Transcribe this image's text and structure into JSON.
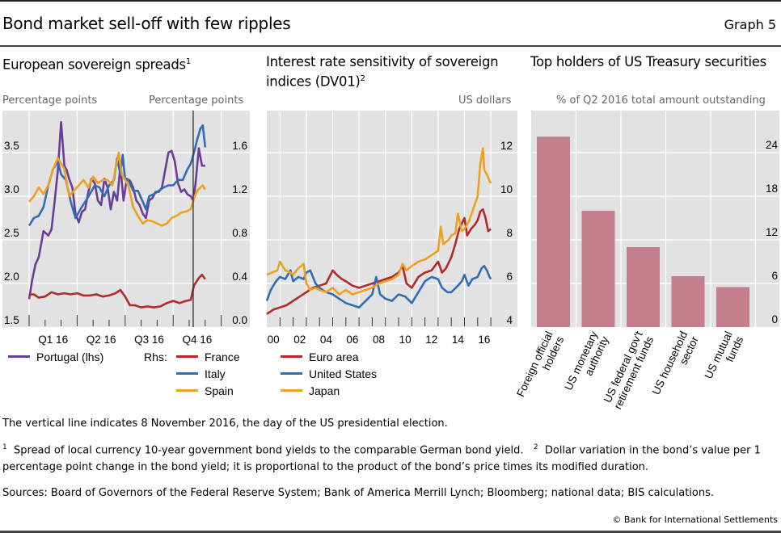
{
  "header": {
    "title": "Bond market sell-off with few ripples",
    "graph_number": "Graph 5"
  },
  "chart_data": [
    {
      "type": "line",
      "title": "European sovereign spreads",
      "title_footnote": "1",
      "left_unit": "Percentage points",
      "right_unit": "Percentage points",
      "x_tick_labels": [
        "Q1 16",
        "Q2 16",
        "Q3 16",
        "Q4 16"
      ],
      "x_range": [
        "2016-01-01",
        "2017-01-01"
      ],
      "ylim_left": [
        1.5,
        4.0
      ],
      "yticks_left": [
        "1.5",
        "2.0",
        "2.5",
        "3.0",
        "3.5"
      ],
      "ylim_right": [
        0.0,
        2.0
      ],
      "yticks_right": [
        "0.0",
        "0.4",
        "0.8",
        "1.2",
        "1.6"
      ],
      "grid": true,
      "annotation": {
        "type": "vertical-line",
        "date": "2016-11-08"
      },
      "legend": {
        "lhs": [
          {
            "name": "Portugal (lhs)",
            "color": "#6a3d9a"
          }
        ],
        "rhs_label": "Rhs:",
        "rhs": [
          {
            "name": "France",
            "color": "#b22a2a"
          },
          {
            "name": "Italy",
            "color": "#2f6db5"
          },
          {
            "name": "Spain",
            "color": "#f0a020"
          }
        ]
      },
      "series": [
        {
          "name": "Portugal",
          "axis": "left",
          "color": "#6a3d9a",
          "x_months": [
            0,
            0.2,
            0.4,
            0.6,
            0.9,
            1.2,
            1.4,
            1.6,
            1.8,
            2.0,
            2.2,
            2.35,
            2.5,
            2.7,
            2.9,
            3.1,
            3.3,
            3.5,
            3.7,
            3.9,
            4.1,
            4.3,
            4.5,
            4.7,
            4.9,
            5.1,
            5.3,
            5.5,
            5.7,
            5.8,
            5.9,
            6.1,
            6.3,
            6.5,
            6.7,
            6.9,
            7.1,
            7.3,
            7.5,
            7.7,
            7.9,
            8.1,
            8.3,
            8.5,
            8.7,
            8.9,
            9.1,
            9.3,
            9.5,
            9.7,
            9.9,
            10.1,
            10.25,
            10.4,
            10.6,
            10.8,
            11.0
          ],
          "values": [
            1.82,
            2.05,
            2.22,
            2.3,
            2.6,
            2.55,
            2.62,
            2.95,
            3.3,
            3.85,
            3.35,
            3.3,
            3.2,
            3.1,
            2.8,
            2.7,
            2.82,
            2.85,
            3.05,
            3.2,
            3.15,
            2.95,
            2.9,
            3.2,
            3.1,
            2.85,
            3.05,
            2.95,
            3.35,
            3.15,
            2.95,
            3.2,
            3.18,
            3.1,
            2.95,
            2.9,
            2.8,
            2.75,
            2.95,
            2.98,
            3.05,
            3.05,
            3.1,
            3.3,
            3.5,
            3.52,
            3.4,
            3.15,
            3.05,
            3.08,
            3.02,
            3.0,
            2.95,
            3.15,
            3.55,
            3.35,
            3.35
          ]
        },
        {
          "name": "France",
          "axis": "right",
          "color": "#b22a2a",
          "x_months": [
            0,
            0.3,
            0.6,
            1.0,
            1.4,
            1.8,
            2.2,
            2.6,
            3.0,
            3.4,
            3.8,
            4.2,
            4.6,
            5.0,
            5.4,
            5.7,
            5.9,
            6.0,
            6.3,
            6.6,
            7.0,
            7.4,
            7.8,
            8.2,
            8.6,
            9.0,
            9.4,
            9.8,
            10.1,
            10.3,
            10.6,
            10.8,
            11.0
          ],
          "values": [
            0.3,
            0.3,
            0.27,
            0.28,
            0.32,
            0.3,
            0.31,
            0.3,
            0.31,
            0.29,
            0.29,
            0.3,
            0.28,
            0.29,
            0.31,
            0.34,
            0.3,
            0.28,
            0.2,
            0.2,
            0.18,
            0.19,
            0.18,
            0.19,
            0.22,
            0.24,
            0.22,
            0.24,
            0.25,
            0.38,
            0.45,
            0.48,
            0.44
          ]
        },
        {
          "name": "Italy",
          "axis": "right",
          "color": "#2f6db5",
          "x_months": [
            0,
            0.3,
            0.6,
            0.9,
            1.2,
            1.5,
            1.8,
            2.0,
            2.3,
            2.6,
            2.9,
            3.2,
            3.5,
            3.8,
            4.1,
            4.4,
            4.7,
            5.0,
            5.3,
            5.5,
            5.7,
            5.85,
            6.0,
            6.2,
            6.5,
            6.8,
            7.1,
            7.3,
            7.5,
            7.8,
            8.1,
            8.4,
            8.7,
            9.0,
            9.3,
            9.6,
            9.9,
            10.1,
            10.3,
            10.5,
            10.7,
            10.85,
            11.0
          ],
          "values": [
            0.93,
            1.0,
            1.02,
            1.1,
            1.3,
            1.45,
            1.52,
            1.4,
            1.35,
            1.15,
            1.0,
            1.08,
            1.15,
            1.22,
            1.3,
            1.28,
            1.2,
            1.3,
            1.35,
            1.55,
            1.4,
            1.58,
            1.35,
            1.35,
            1.25,
            1.25,
            1.15,
            1.08,
            1.2,
            1.22,
            1.25,
            1.28,
            1.3,
            1.3,
            1.35,
            1.35,
            1.45,
            1.5,
            1.6,
            1.72,
            1.82,
            1.85,
            1.65
          ]
        },
        {
          "name": "Spain",
          "axis": "right",
          "color": "#f0a020",
          "x_months": [
            0,
            0.3,
            0.6,
            0.9,
            1.2,
            1.5,
            1.8,
            2.0,
            2.2,
            2.5,
            2.8,
            3.1,
            3.4,
            3.7,
            4.0,
            4.3,
            4.6,
            4.9,
            5.2,
            5.4,
            5.6,
            5.8,
            6.0,
            6.2,
            6.5,
            6.8,
            7.1,
            7.4,
            7.7,
            8.0,
            8.3,
            8.6,
            8.9,
            9.2,
            9.5,
            9.8,
            10.1,
            10.3,
            10.5,
            10.7,
            10.85,
            11.0
          ],
          "values": [
            1.15,
            1.2,
            1.28,
            1.22,
            1.3,
            1.45,
            1.55,
            1.5,
            1.45,
            1.2,
            1.25,
            1.3,
            1.35,
            1.28,
            1.38,
            1.32,
            1.35,
            1.35,
            1.3,
            1.45,
            1.6,
            1.4,
            1.35,
            1.3,
            1.1,
            1.02,
            0.95,
            0.98,
            0.97,
            0.95,
            0.93,
            0.95,
            1.0,
            1.02,
            1.05,
            1.06,
            1.08,
            1.18,
            1.25,
            1.28,
            1.3,
            1.26
          ]
        }
      ]
    },
    {
      "type": "line",
      "title": "Interest rate sensitivity of sovereign indices (DV01)",
      "title_footnote": "2",
      "right_unit": "US dollars",
      "x_tick_labels": [
        "00",
        "02",
        "04",
        "06",
        "08",
        "10",
        "12",
        "14",
        "16"
      ],
      "x_range": [
        2000,
        2017
      ],
      "ylim": [
        4,
        14
      ],
      "yticks": [
        "4",
        "6",
        "8",
        "10",
        "12"
      ],
      "grid": true,
      "legend": [
        {
          "name": "Euro area",
          "color": "#b22a2a"
        },
        {
          "name": "United States",
          "color": "#2f6db5"
        },
        {
          "name": "Japan",
          "color": "#f0a020"
        }
      ],
      "series": [
        {
          "name": "Euro area",
          "color": "#b22a2a",
          "x": [
            2000,
            2000.5,
            2001,
            2001.5,
            2002,
            2002.5,
            2003,
            2003.5,
            2004,
            2004.5,
            2005,
            2005.3,
            2005.7,
            2006,
            2006.5,
            2007,
            2007.5,
            2008,
            2008.5,
            2009,
            2009.5,
            2010,
            2010.3,
            2010.6,
            2011,
            2011.5,
            2012,
            2012.5,
            2013,
            2013.3,
            2013.6,
            2014,
            2014.3,
            2014.6,
            2015,
            2015.2,
            2015.5,
            2015.8,
            2016,
            2016.2,
            2016.4,
            2016.6,
            2016.8,
            2017
          ],
          "values": [
            4.6,
            4.8,
            4.9,
            5.0,
            5.2,
            5.4,
            5.6,
            5.8,
            5.9,
            6.0,
            6.6,
            6.4,
            6.2,
            6.1,
            5.9,
            5.8,
            5.9,
            6.0,
            6.1,
            6.2,
            6.3,
            6.5,
            6.8,
            6.0,
            5.8,
            6.3,
            6.5,
            6.6,
            7.0,
            6.5,
            6.7,
            7.2,
            7.8,
            8.5,
            9.0,
            8.2,
            8.5,
            8.7,
            8.9,
            9.3,
            9.4,
            9.0,
            8.4,
            8.5
          ]
        },
        {
          "name": "United States",
          "color": "#2f6db5",
          "x": [
            2000,
            2000.3,
            2000.7,
            2001,
            2001.4,
            2001.8,
            2002,
            2002.4,
            2002.8,
            2003,
            2003.3,
            2003.7,
            2004,
            2004.5,
            2005,
            2005.5,
            2006,
            2006.5,
            2007,
            2007.5,
            2008,
            2008.3,
            2008.6,
            2009,
            2009.5,
            2010,
            2010.5,
            2011,
            2011.5,
            2012,
            2012.5,
            2013,
            2013.3,
            2013.7,
            2014,
            2014.5,
            2014.8,
            2015,
            2015.3,
            2015.6,
            2016,
            2016.3,
            2016.5,
            2016.7,
            2016.9,
            2017
          ],
          "values": [
            5.2,
            5.7,
            6.1,
            6.3,
            6.2,
            6.6,
            6.1,
            6.3,
            6.2,
            6.5,
            6.6,
            6.0,
            5.8,
            5.6,
            5.5,
            5.3,
            5.1,
            5.0,
            4.9,
            5.2,
            5.5,
            6.3,
            5.5,
            5.3,
            5.2,
            5.5,
            5.4,
            5.1,
            5.6,
            6.1,
            6.3,
            6.2,
            5.8,
            5.6,
            5.6,
            5.9,
            6.1,
            6.4,
            5.9,
            6.2,
            6.3,
            6.7,
            6.8,
            6.6,
            6.3,
            6.2
          ]
        },
        {
          "name": "Japan",
          "color": "#f0a020",
          "x": [
            2000,
            2000.4,
            2000.8,
            2001,
            2001.4,
            2001.8,
            2002,
            2002.4,
            2002.8,
            2003,
            2003.3,
            2003.7,
            2004,
            2004.5,
            2005,
            2005.5,
            2006,
            2006.5,
            2007,
            2007.5,
            2008,
            2008.5,
            2009,
            2009.5,
            2010,
            2010.3,
            2010.6,
            2011,
            2011.5,
            2012,
            2012.5,
            2013,
            2013.2,
            2013.4,
            2013.8,
            2014,
            2014.3,
            2014.5,
            2014.8,
            2015,
            2015.3,
            2015.6,
            2016,
            2016.2,
            2016.4,
            2016.5,
            2016.7,
            2016.9,
            2017
          ],
          "values": [
            6.4,
            6.5,
            6.6,
            7.0,
            6.6,
            6.5,
            6.4,
            6.7,
            6.9,
            6.0,
            5.7,
            5.8,
            5.7,
            5.6,
            5.8,
            5.5,
            5.7,
            5.5,
            5.6,
            5.7,
            5.8,
            6.0,
            6.1,
            6.2,
            6.4,
            6.9,
            6.6,
            6.8,
            7.0,
            7.1,
            7.3,
            7.5,
            8.6,
            7.8,
            8.0,
            8.2,
            8.3,
            9.2,
            8.4,
            8.5,
            8.8,
            9.3,
            10.0,
            11.5,
            12.2,
            11.2,
            11.0,
            10.7,
            10.6
          ]
        }
      ]
    },
    {
      "type": "bar",
      "title": "Top holders of US Treasury securities",
      "right_unit": "% of Q2 2016 total amount outstanding",
      "categories": [
        "Foreign official holders",
        "US monetary authority",
        "US federal gov't retirement funds",
        "US household sector",
        "US mutual funds"
      ],
      "category_lines": [
        [
          "Foreign official",
          "holders"
        ],
        [
          "US monetary",
          "authority"
        ],
        [
          "US federal gov't",
          "retirement funds"
        ],
        [
          "US household",
          "sector"
        ],
        [
          "US mutual",
          "funds"
        ]
      ],
      "values": [
        26.2,
        16.0,
        11.0,
        7.0,
        5.5
      ],
      "color": "#c47f8e",
      "ylim": [
        0,
        30
      ],
      "yticks": [
        "0",
        "6",
        "12",
        "18",
        "24"
      ],
      "grid": true
    }
  ],
  "notes": {
    "vertical_line_note": "The vertical line indicates 8 November 2016, the day of the US presidential election.",
    "footnote1_mark": "1",
    "footnote1": "Spread of local currency 10-year government bond yields to the comparable German bond yield.",
    "footnote2_mark": "2",
    "footnote2": "Dollar variation in the bond’s value per 1 percentage point change in the bond yield; it is proportional to the product of the bond’s price times its modified duration.",
    "sources": "Sources: Board of Governors of the Federal Reserve System; Bank of America Merrill Lynch; Bloomberg; national data; BIS calculations.",
    "copyright": "© Bank for International Settlements"
  }
}
